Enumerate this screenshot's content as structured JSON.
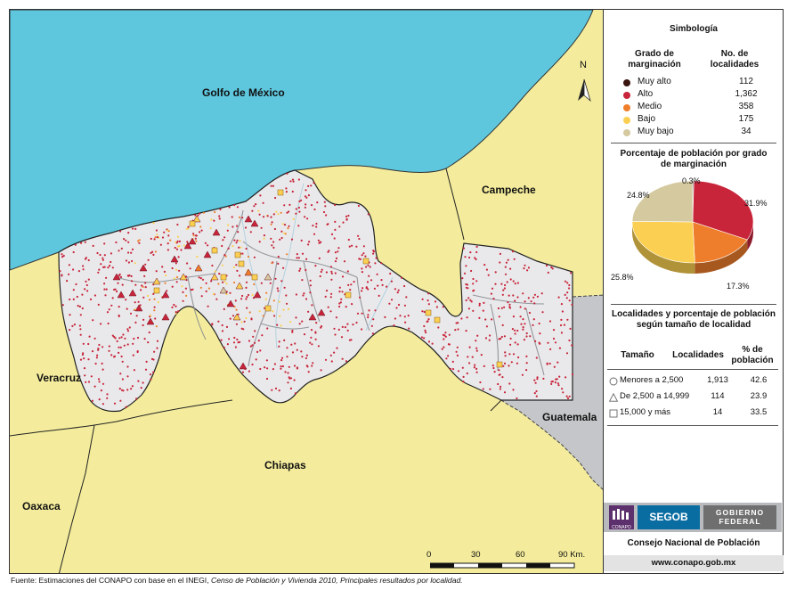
{
  "map": {
    "labels": {
      "gulf": "Golfo de México",
      "campeche": "Campeche",
      "veracruz": "Veracruz",
      "chiapas": "Chiapas",
      "oaxaca": "Oaxaca",
      "guatemala": "Guatemala",
      "north": "N"
    },
    "colors": {
      "sea": "#5ec7de",
      "land": "#f4ec9c",
      "state": "#e9e9eb",
      "guatemala": "#c4c6c9",
      "dot": "#c8243a"
    },
    "scale_bar": {
      "ticks": [
        "0",
        "30",
        "60",
        "90 Km."
      ]
    }
  },
  "legend": {
    "title": "Simbología",
    "col_grado": "Grado de marginación",
    "col_no": "No. de localidades",
    "grades": [
      {
        "label": "Muy alto",
        "count": "112",
        "color": "#3a1510"
      },
      {
        "label": "Alto",
        "count": "1,362",
        "color": "#c8243a"
      },
      {
        "label": "Medio",
        "count": "358",
        "color": "#ee7e2c"
      },
      {
        "label": "Bajo",
        "count": "175",
        "color": "#fbd052"
      },
      {
        "label": "Muy bajo",
        "count": "34",
        "color": "#d5c9a0"
      }
    ],
    "pie_title": "Porcentaje de población por grado de marginación",
    "pie": [
      {
        "label": "Muy alto",
        "value": 0.3,
        "text": "0.3%",
        "color": "#3a1510"
      },
      {
        "label": "Alto",
        "value": 31.9,
        "text": "31.9%",
        "color": "#c8243a"
      },
      {
        "label": "Medio",
        "value": 17.3,
        "text": "17.3%",
        "color": "#ee7e2c"
      },
      {
        "label": "Bajo",
        "value": 25.8,
        "text": "25.8%",
        "color": "#fbd052"
      },
      {
        "label": "Muy bajo",
        "value": 24.8,
        "text": "24.8%",
        "color": "#d5c9a0"
      }
    ],
    "size_title": "Localidades y porcentaje de población según tamaño de localidad",
    "size_headers": {
      "tam": "Tamaño",
      "loc": "Localidades",
      "pct": "% de población"
    },
    "size_rows": [
      {
        "label": "Menores a 2,500",
        "loc": "1,913",
        "pct": "42.6",
        "symbol": "circle"
      },
      {
        "label": "De 2,500 a 14,999",
        "loc": "114",
        "pct": "23.9",
        "symbol": "triangle"
      },
      {
        "label": "15,000 y más",
        "loc": "14",
        "pct": "33.5",
        "symbol": "square"
      }
    ]
  },
  "logos": {
    "conapo": "CONAPO",
    "segob": "SEGOB",
    "gobierno_line1": "GOBIERNO",
    "gobierno_line2": "FEDERAL"
  },
  "footer": {
    "consejo": "Consejo Nacional de Población",
    "web": "www.conapo.gob.mx",
    "source_pre": "Fuente: Estimaciones del CONAPO con base en el INEGI, ",
    "source_italic": "Censo de Población y Vivienda 2010, Principales resultados por localidad."
  }
}
